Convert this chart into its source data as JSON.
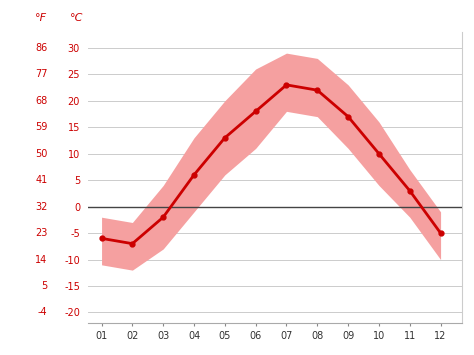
{
  "months": [
    1,
    2,
    3,
    4,
    5,
    6,
    7,
    8,
    9,
    10,
    11,
    12
  ],
  "month_labels": [
    "01",
    "02",
    "03",
    "04",
    "05",
    "06",
    "07",
    "08",
    "09",
    "10",
    "11",
    "12"
  ],
  "mean_temp_c": [
    -6,
    -7,
    -2,
    6,
    13,
    18,
    23,
    22,
    17,
    10,
    3,
    -5
  ],
  "high_temp_c": [
    -2,
    -3,
    4,
    13,
    20,
    26,
    29,
    28,
    23,
    16,
    7,
    -1
  ],
  "low_temp_c": [
    -11,
    -12,
    -8,
    -1,
    6,
    11,
    18,
    17,
    11,
    4,
    -2,
    -10
  ],
  "yticks_c": [
    -20,
    -15,
    -10,
    -5,
    0,
    5,
    10,
    15,
    20,
    25,
    30
  ],
  "yticks_f": [
    -4,
    5,
    14,
    23,
    32,
    41,
    50,
    59,
    68,
    77,
    86
  ],
  "line_color": "#cc0000",
  "fill_color": "#f5a0a0",
  "zero_line_color": "#444444",
  "grid_color": "#cccccc",
  "label_color": "#cc0000",
  "bg_color": "#ffffff",
  "ylim": [
    -22,
    33
  ],
  "xlim": [
    0.55,
    12.7
  ]
}
